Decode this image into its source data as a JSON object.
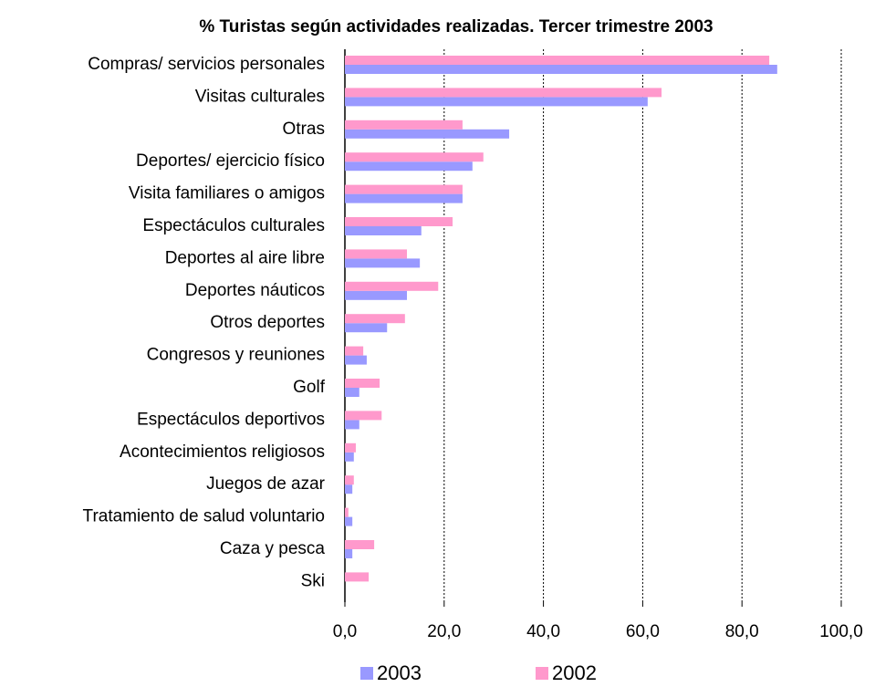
{
  "chart_data": {
    "type": "hbar",
    "title": "% Turistas según actividades realizadas. Tercer trimestre 2003",
    "categories": [
      "Compras/ servicios personales",
      "Visitas culturales",
      "Otras",
      "Deportes/ ejercicio físico",
      "Visita familiares o amigos",
      "Espectáculos culturales",
      "Deportes al aire libre",
      "Deportes náuticos",
      "Otros deportes",
      "Congresos y reuniones",
      "Golf",
      "Espectáculos deportivos",
      "Acontecimientos religiosos",
      "Juegos de azar",
      "Tratamiento de salud voluntario",
      "Caza y pesca",
      "Ski"
    ],
    "series": [
      {
        "name": "2003",
        "color": "#9999ff",
        "values": [
          87.1,
          61.0,
          33.1,
          25.7,
          23.7,
          15.4,
          15.1,
          12.5,
          8.5,
          4.4,
          2.9,
          2.9,
          1.8,
          1.5,
          1.5,
          1.5,
          0
        ]
      },
      {
        "name": "2002",
        "color": "#ff99cc",
        "values": [
          85.5,
          63.8,
          23.7,
          27.9,
          23.7,
          21.7,
          12.5,
          18.8,
          12.1,
          3.7,
          7.0,
          7.4,
          2.2,
          1.8,
          0.7,
          5.9,
          4.8
        ]
      }
    ],
    "xlim": [
      0,
      100
    ],
    "xticks": [
      {
        "value": 0,
        "label": "0,0"
      },
      {
        "value": 20,
        "label": "20,0"
      },
      {
        "value": 40,
        "label": "40,0"
      },
      {
        "value": 60,
        "label": "60,0"
      },
      {
        "value": 80,
        "label": "80,0"
      },
      {
        "value": 100,
        "label": "100,0"
      }
    ],
    "grid": true,
    "legend": "bottom"
  }
}
